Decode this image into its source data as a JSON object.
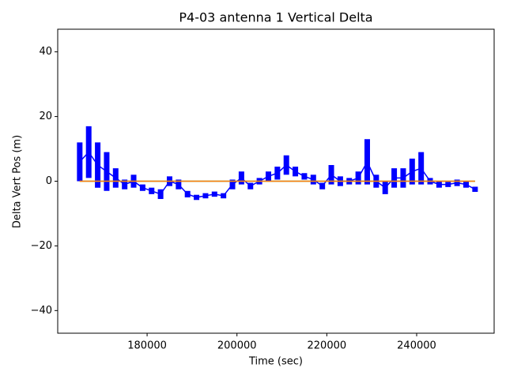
{
  "chart_data": {
    "type": "errorbar",
    "title": "P4-03 antenna 1 Vertical Delta",
    "xlabel": "Time (sec)",
    "ylabel": "Delta Vert Pos (m)",
    "xlim": [
      160100,
      257250
    ],
    "ylim": [
      -47,
      47
    ],
    "xticks": [
      180000,
      200000,
      220000,
      240000
    ],
    "yticks": [
      {
        "value": -40,
        "label": "−40"
      },
      {
        "value": -20,
        "label": "−20"
      },
      0,
      20,
      40
    ],
    "series": [
      {
        "color": "#0000ff",
        "x": [
          165000,
          167000,
          169000,
          171000,
          173000,
          175000,
          177000,
          179000,
          181000,
          183000,
          185000,
          187000,
          189000,
          191000,
          193000,
          195000,
          197000,
          199000,
          201000,
          203000,
          205000,
          207000,
          209000,
          211000,
          213000,
          215000,
          217000,
          219000,
          221000,
          223000,
          225000,
          227000,
          229000,
          231000,
          233000,
          235000,
          237000,
          239000,
          241000,
          243000,
          245000,
          247000,
          249000,
          251000,
          253000
        ],
        "values": [
          6,
          9,
          5,
          3,
          1,
          -1,
          0,
          -2,
          -3,
          -4,
          0,
          -1,
          -4,
          -5,
          -4.5,
          -4,
          -4.5,
          -1,
          1,
          -1.5,
          0,
          1.5,
          2.5,
          5,
          3,
          1.5,
          0.5,
          -1.5,
          2,
          0,
          0,
          1,
          6,
          0,
          -2,
          1,
          1,
          3,
          4,
          0,
          -1,
          -1,
          -0.5,
          -1,
          -2.5
        ],
        "errors": [
          6,
          8,
          7,
          6,
          3,
          1.5,
          2,
          1,
          1,
          1.5,
          1.5,
          1.5,
          1,
          0.8,
          0.8,
          0.8,
          0.8,
          1.5,
          2,
          1,
          1,
          1.5,
          2,
          3,
          1.5,
          1,
          1.5,
          1,
          3,
          1.5,
          1,
          2,
          7,
          2,
          2,
          3,
          3,
          4,
          5,
          1,
          1,
          0.8,
          1,
          1,
          0.8
        ]
      },
      {
        "color": "#2ca02c",
        "x": [
          165000,
          253000
        ],
        "values": [
          0,
          0
        ]
      },
      {
        "color": "#ff7f0e",
        "x": [
          165000,
          253000
        ],
        "values": [
          0,
          0
        ]
      }
    ]
  }
}
